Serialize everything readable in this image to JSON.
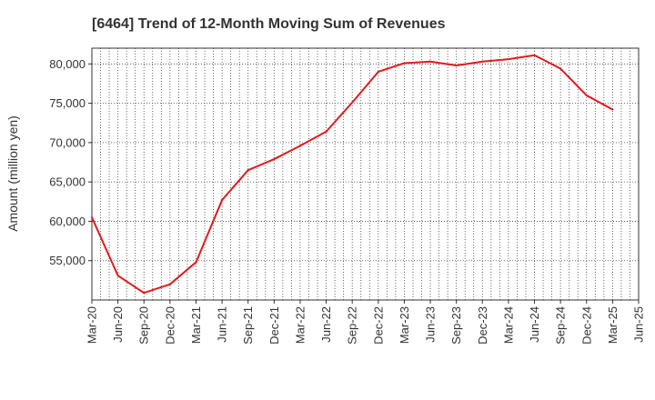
{
  "chart_data": {
    "type": "line",
    "title": "[6464]  Trend of 12-Month Moving Sum of Revenues",
    "xlabel": "",
    "ylabel": "Amount (million yen)",
    "ylim": [
      50000,
      82000
    ],
    "y_ticks": [
      55000,
      60000,
      65000,
      70000,
      75000,
      80000
    ],
    "y_tick_labels": [
      "55,000",
      "60,000",
      "65,000",
      "70,000",
      "75,000",
      "80,000"
    ],
    "x_tick_labels": [
      "Mar-20",
      "Jun-20",
      "Sep-20",
      "Dec-20",
      "Mar-21",
      "Jun-21",
      "Sep-21",
      "Dec-21",
      "Mar-22",
      "Jun-22",
      "Sep-22",
      "Dec-22",
      "Mar-23",
      "Jun-23",
      "Sep-23",
      "Dec-23",
      "Mar-24",
      "Jun-24",
      "Sep-24",
      "Dec-24",
      "Mar-25",
      "Jun-25"
    ],
    "grid": true,
    "series": [
      {
        "name": "",
        "color": "#e31a1c",
        "x": [
          "Mar-20",
          "Jun-20",
          "Sep-20",
          "Dec-20",
          "Mar-21",
          "Jun-21",
          "Sep-21",
          "Dec-21",
          "Mar-22",
          "Jun-22",
          "Sep-22",
          "Dec-22",
          "Mar-23",
          "Jun-23",
          "Sep-23",
          "Dec-23",
          "Mar-24",
          "Jun-24",
          "Sep-24",
          "Dec-24",
          "Mar-25"
        ],
        "values": [
          60500,
          53100,
          50900,
          52000,
          54800,
          62700,
          66500,
          67900,
          69600,
          71400,
          75100,
          79000,
          80100,
          80300,
          79800,
          80300,
          80600,
          81100,
          79400,
          76000,
          74200
        ]
      }
    ]
  }
}
